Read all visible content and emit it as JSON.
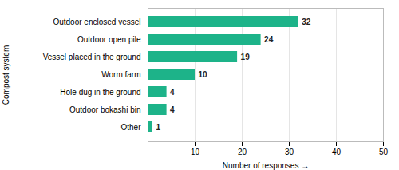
{
  "chart_data": {
    "type": "bar",
    "orientation": "horizontal",
    "categories": [
      "Other",
      "Outdoor bokashi bin",
      "Hole dug in the ground",
      "Worm farm",
      "Vessel placed in the ground",
      "Outdoor open pile",
      "Outdoor enclosed vessel"
    ],
    "values": [
      1,
      4,
      4,
      10,
      19,
      24,
      32
    ],
    "color": "#1db389",
    "xlabel": "Number of responses",
    "ylabel": "Compost system",
    "xlim": [
      0,
      50
    ],
    "xticks": [
      10,
      20,
      30,
      40,
      50
    ],
    "grid": true,
    "data_labels": true
  }
}
